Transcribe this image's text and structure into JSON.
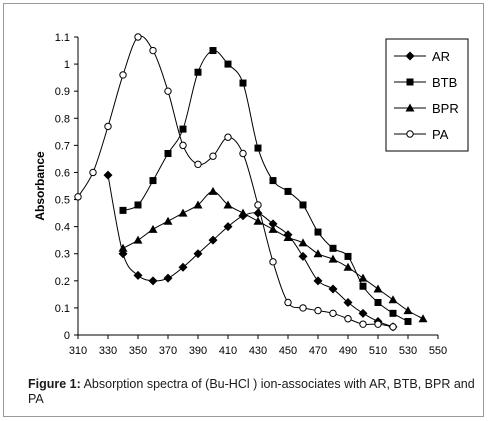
{
  "chart_data": {
    "type": "line",
    "ylabel": "Absorbance",
    "xlabel": "",
    "xlim": [
      310,
      550
    ],
    "ylim": [
      0,
      1.1
    ],
    "x_ticks": [
      "310",
      "330",
      "350",
      "370",
      "390",
      "410",
      "430",
      "450",
      "470",
      "490",
      "510",
      "530",
      "550"
    ],
    "y_ticks": [
      "0",
      "0.1",
      "0.2",
      "0.3",
      "0.4",
      "0.5",
      "0.6",
      "0.7",
      "0.8",
      "0.9",
      "1",
      "1.1"
    ],
    "legend_position": "top-right",
    "grid": false,
    "series": [
      {
        "name": "AR",
        "marker": "diamond",
        "color": "#000000",
        "points": [
          [
            330,
            0.59
          ],
          [
            340,
            0.3
          ],
          [
            350,
            0.22
          ],
          [
            360,
            0.2
          ],
          [
            370,
            0.21
          ],
          [
            380,
            0.25
          ],
          [
            390,
            0.3
          ],
          [
            400,
            0.35
          ],
          [
            410,
            0.4
          ],
          [
            420,
            0.44
          ],
          [
            430,
            0.45
          ],
          [
            440,
            0.41
          ],
          [
            450,
            0.37
          ],
          [
            460,
            0.29
          ],
          [
            470,
            0.2
          ],
          [
            480,
            0.17
          ],
          [
            490,
            0.12
          ],
          [
            500,
            0.08
          ],
          [
            510,
            0.05
          ],
          [
            520,
            0.03
          ]
        ]
      },
      {
        "name": "BTB",
        "marker": "square",
        "color": "#000000",
        "points": [
          [
            340,
            0.46
          ],
          [
            350,
            0.48
          ],
          [
            360,
            0.57
          ],
          [
            370,
            0.67
          ],
          [
            380,
            0.76
          ],
          [
            390,
            0.97
          ],
          [
            400,
            1.05
          ],
          [
            410,
            1.0
          ],
          [
            420,
            0.93
          ],
          [
            430,
            0.69
          ],
          [
            440,
            0.57
          ],
          [
            450,
            0.53
          ],
          [
            460,
            0.48
          ],
          [
            470,
            0.38
          ],
          [
            480,
            0.32
          ],
          [
            490,
            0.29
          ],
          [
            500,
            0.18
          ],
          [
            510,
            0.12
          ],
          [
            520,
            0.08
          ],
          [
            530,
            0.05
          ]
        ]
      },
      {
        "name": "BPR",
        "marker": "triangle",
        "color": "#000000",
        "points": [
          [
            340,
            0.32
          ],
          [
            350,
            0.35
          ],
          [
            360,
            0.39
          ],
          [
            370,
            0.42
          ],
          [
            380,
            0.45
          ],
          [
            390,
            0.48
          ],
          [
            400,
            0.53
          ],
          [
            410,
            0.48
          ],
          [
            420,
            0.45
          ],
          [
            430,
            0.42
          ],
          [
            440,
            0.39
          ],
          [
            450,
            0.36
          ],
          [
            460,
            0.34
          ],
          [
            470,
            0.3
          ],
          [
            480,
            0.28
          ],
          [
            490,
            0.25
          ],
          [
            500,
            0.21
          ],
          [
            510,
            0.17
          ],
          [
            520,
            0.13
          ],
          [
            530,
            0.09
          ],
          [
            540,
            0.06
          ]
        ]
      },
      {
        "name": "PA",
        "marker": "circle",
        "color": "#000000",
        "points": [
          [
            310,
            0.51
          ],
          [
            320,
            0.6
          ],
          [
            330,
            0.77
          ],
          [
            340,
            0.96
          ],
          [
            350,
            1.1
          ],
          [
            360,
            1.05
          ],
          [
            370,
            0.9
          ],
          [
            380,
            0.7
          ],
          [
            390,
            0.63
          ],
          [
            400,
            0.66
          ],
          [
            410,
            0.73
          ],
          [
            420,
            0.67
          ],
          [
            430,
            0.48
          ],
          [
            440,
            0.27
          ],
          [
            450,
            0.12
          ],
          [
            460,
            0.1
          ],
          [
            470,
            0.09
          ],
          [
            480,
            0.08
          ],
          [
            490,
            0.06
          ],
          [
            500,
            0.04
          ],
          [
            510,
            0.04
          ],
          [
            520,
            0.03
          ]
        ]
      }
    ]
  },
  "caption": {
    "label": "Figure 1:",
    "text": " Absorption spectra of (Bu-HCl )   ion-associates with AR, BTB, BPR and PA"
  }
}
